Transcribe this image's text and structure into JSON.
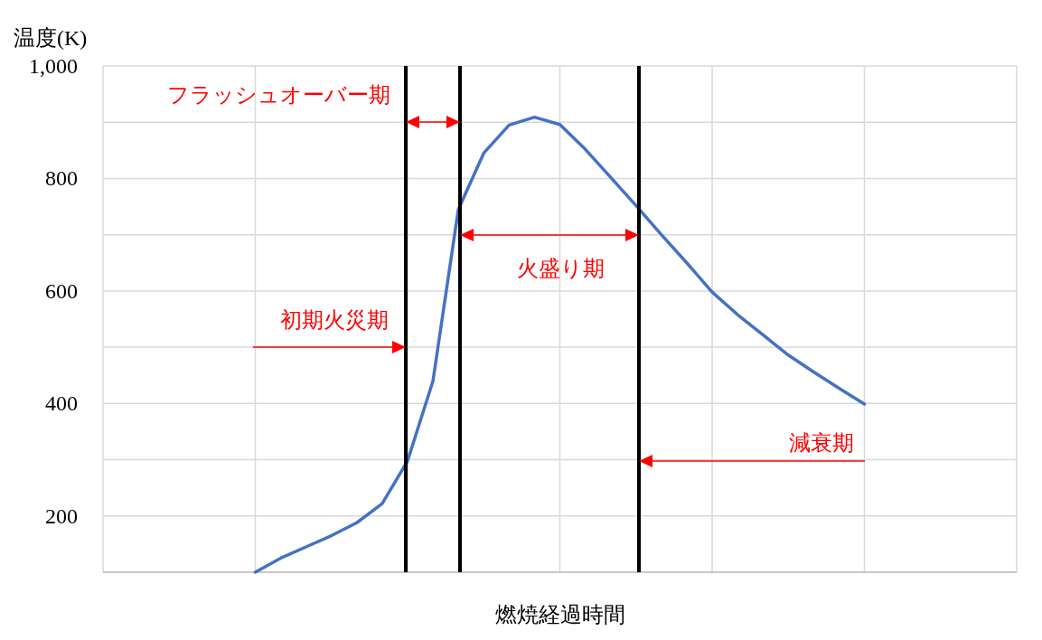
{
  "chart_data": {
    "type": "line",
    "xlabel": "燃焼経過時間",
    "ylabel": "温度(K)",
    "categories": [
      null,
      null,
      null,
      null,
      null,
      null,
      null,
      null,
      null,
      null,
      null,
      null,
      null,
      null,
      null,
      null,
      null,
      null,
      null,
      null,
      null,
      null,
      null,
      null,
      null,
      null,
      null,
      null,
      null,
      null,
      null,
      null,
      null,
      null,
      null,
      null,
      null
    ],
    "ylim": [
      100,
      1000
    ],
    "yticks": [
      {
        "value": 100,
        "label": null
      },
      {
        "value": 200,
        "label": "200"
      },
      {
        "value": 300,
        "label": null
      },
      {
        "value": 400,
        "label": "400"
      },
      {
        "value": 500,
        "label": null
      },
      {
        "value": 600,
        "label": "600"
      },
      {
        "value": 700,
        "label": null
      },
      {
        "value": 800,
        "label": "800"
      },
      {
        "value": 900,
        "label": null
      },
      {
        "value": 1000,
        "label": "1,000"
      }
    ],
    "tick_labels": "y",
    "grid": true,
    "line_style": "solid",
    "series": [
      {
        "color": "#4472c4",
        "values": [
          null,
          null,
          null,
          null,
          null,
          null,
          100,
          125,
          145,
          165,
          188,
          222,
          298,
          440,
          745,
          845,
          895,
          909,
          896,
          852,
          802,
          752,
          700,
          650,
          598,
          558,
          522,
          486,
          456,
          427,
          399,
          null,
          null,
          null,
          null,
          null,
          null
        ]
      }
    ],
    "annotations": [
      "フラッシュオーバー期",
      "火盛り期",
      "初期火災期",
      "減衰期"
    ]
  }
}
